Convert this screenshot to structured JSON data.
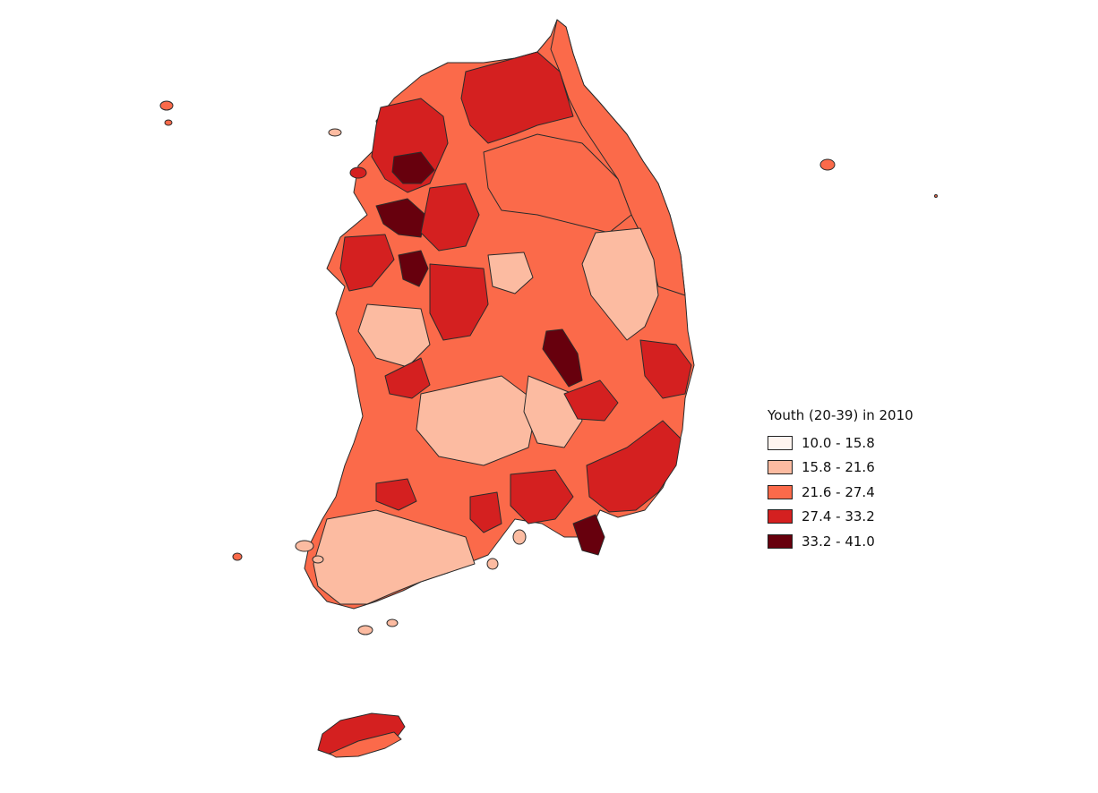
{
  "map": {
    "region": "South Korea",
    "variable": "Youth (20-39)",
    "year": "2010",
    "outline_color": "#2b2b2b"
  },
  "legend": {
    "title": "Youth (20-39) in 2010",
    "classes": [
      {
        "label": "10.0 - 15.8",
        "color": "#fff5f0"
      },
      {
        "label": "15.8 - 21.6",
        "color": "#fcbba1"
      },
      {
        "label": "21.6 - 27.4",
        "color": "#fb6a4a"
      },
      {
        "label": "27.4 - 33.2",
        "color": "#d42020"
      },
      {
        "label": "33.2 - 41.0",
        "color": "#67000d"
      }
    ]
  }
}
